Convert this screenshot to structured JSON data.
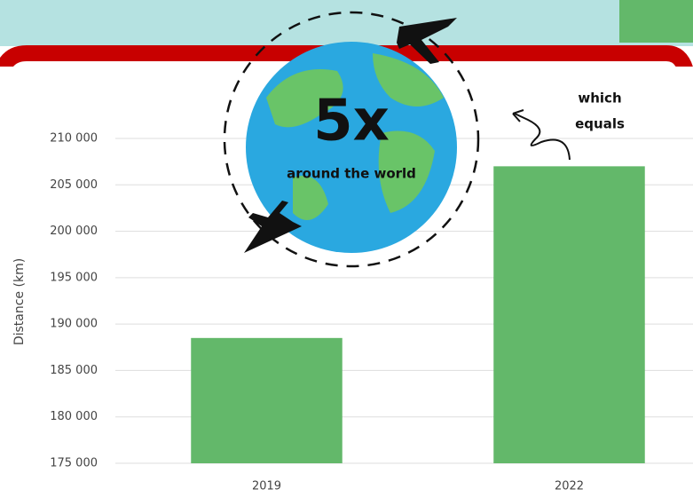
{
  "chart_data": {
    "type": "bar",
    "globe_text": "5x",
    "globe_caption": "around the world",
    "annotation": [
      "which",
      "equals"
    ],
    "ylabel": "Distance (km)",
    "categories": [
      "2019",
      "2022"
    ],
    "values": [
      188500,
      207000
    ],
    "color": "#63b86a",
    "ylim": [
      175000,
      210000
    ],
    "yticks": [
      {
        "value": 175000,
        "label": "175 000"
      },
      {
        "value": 180000,
        "label": "180 000"
      },
      {
        "value": 185000,
        "label": "185 000"
      },
      {
        "value": 190000,
        "label": "190 000"
      },
      {
        "value": 195000,
        "label": "195 000"
      },
      {
        "value": 200000,
        "label": "200 000"
      },
      {
        "value": 205000,
        "label": "205 000"
      },
      {
        "value": 210000,
        "label": "210 000"
      }
    ],
    "grid": true
  }
}
